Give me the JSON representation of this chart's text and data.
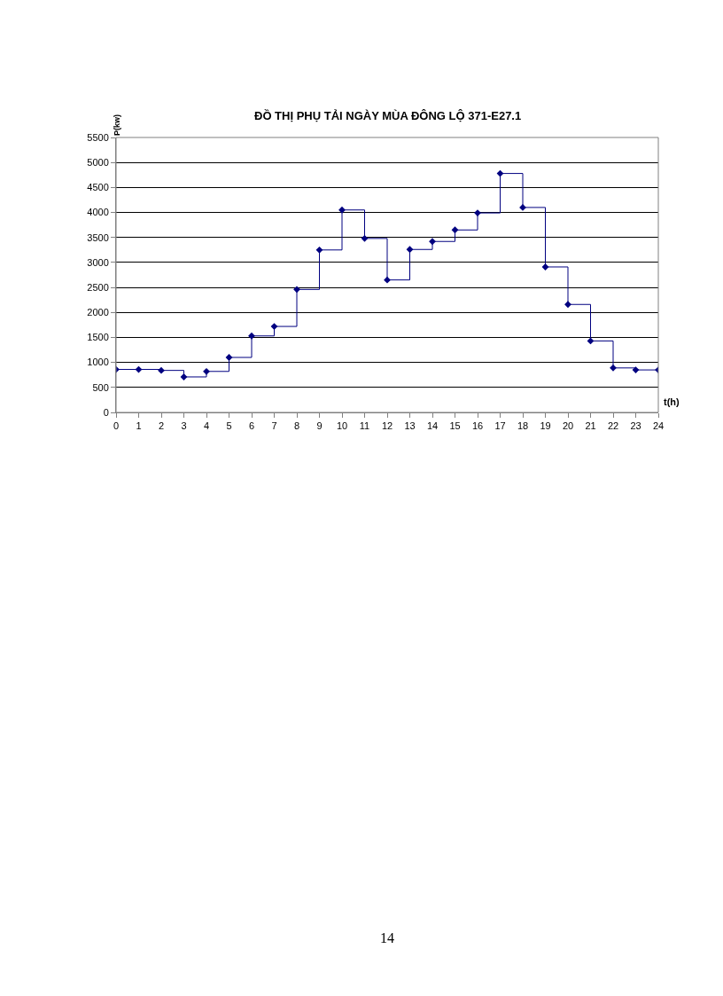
{
  "chart_data": {
    "type": "step",
    "title": "ĐỒ THỊ PHỤ TẢI NGÀY MÙA ĐÔNG LỘ 371-E27.1",
    "xlabel": "t(h)",
    "ylabel": "P(kw)",
    "x": [
      0,
      1,
      2,
      3,
      4,
      5,
      6,
      7,
      8,
      9,
      10,
      11,
      12,
      13,
      14,
      15,
      16,
      17,
      18,
      19,
      20,
      21,
      22,
      23,
      24
    ],
    "series": [
      {
        "color": "#000080",
        "values": [
          860,
          860,
          840,
          710,
          820,
          1100,
          1530,
          1720,
          2460,
          3250,
          4050,
          3480,
          2650,
          3260,
          3420,
          3650,
          3990,
          4780,
          4100,
          2910,
          2160,
          1430,
          890,
          850,
          850
        ]
      }
    ],
    "xlim": [
      0,
      24
    ],
    "xticks": [
      0,
      1,
      2,
      3,
      4,
      5,
      6,
      7,
      8,
      9,
      10,
      11,
      12,
      13,
      14,
      15,
      16,
      17,
      18,
      19,
      20,
      21,
      22,
      23,
      24
    ],
    "ylim": [
      0,
      5500
    ],
    "yticks": [
      0,
      500,
      1000,
      1500,
      2000,
      2500,
      3000,
      3500,
      4000,
      4500,
      5000,
      5500
    ],
    "grid": "y",
    "marker": "diamond",
    "line_style": "solid",
    "annotations": [
      "14"
    ]
  }
}
